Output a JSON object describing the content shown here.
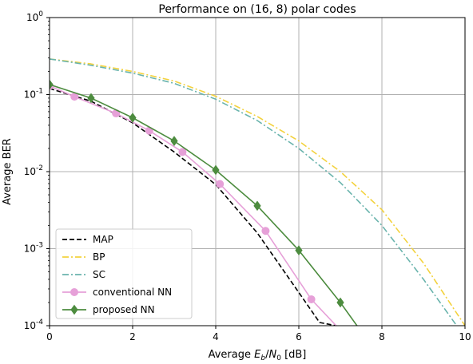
{
  "chart_data": {
    "type": "line",
    "title": "Performance on (16, 8) polar codes",
    "xlabel": {
      "prefix": "Average ",
      "sym1": "E",
      "sub1": "b",
      "slash": "/",
      "sym2": "N",
      "sub2": "0",
      "suffix": " [dB]"
    },
    "ylabel": "Average BER",
    "xlim": [
      0,
      10
    ],
    "ylim": [
      0.0001,
      1
    ],
    "yscale": "log",
    "grid": true,
    "legend_position": "lower-left",
    "x_ticks": [
      "0",
      "2",
      "4",
      "6",
      "8",
      "10"
    ],
    "x_tick_values": [
      0,
      2,
      4,
      6,
      8,
      10
    ],
    "y_ticks": [
      {
        "value": 1,
        "base": "10",
        "exp": "0"
      },
      {
        "value": 0.1,
        "base": "10",
        "exp": "-1"
      },
      {
        "value": 0.01,
        "base": "10",
        "exp": "-2"
      },
      {
        "value": 0.001,
        "base": "10",
        "exp": "-3"
      },
      {
        "value": 0.0001,
        "base": "10",
        "exp": "-4"
      }
    ],
    "series": [
      {
        "name": "MAP",
        "color": "#000000",
        "style": "dashed",
        "marker": "none",
        "x": [
          0,
          1,
          2,
          3,
          4,
          5,
          6,
          6.5,
          6.9
        ],
        "y": [
          0.12,
          0.082,
          0.043,
          0.018,
          0.0068,
          0.0016,
          0.00027,
          0.00011,
          0.0001
        ]
      },
      {
        "name": "BP",
        "color": "#f3d23e",
        "style": "dashdot",
        "marker": "none",
        "x": [
          0,
          1,
          2,
          3,
          4,
          5,
          6,
          7,
          8,
          9,
          10
        ],
        "y": [
          0.29,
          0.25,
          0.2,
          0.15,
          0.095,
          0.052,
          0.025,
          0.01,
          0.0032,
          0.00065,
          0.0001
        ]
      },
      {
        "name": "SC",
        "color": "#6ab4ad",
        "style": "dashdot",
        "marker": "none",
        "x": [
          0,
          1,
          2,
          3,
          4,
          5,
          6,
          7,
          8,
          9,
          9.8
        ],
        "y": [
          0.29,
          0.24,
          0.19,
          0.14,
          0.087,
          0.046,
          0.02,
          0.0072,
          0.002,
          0.0004,
          0.0001
        ]
      },
      {
        "name": "conventional NN",
        "color": "#e6a0d8",
        "style": "solid",
        "marker": "circle",
        "x": [
          0,
          0.6,
          1.6,
          2.4,
          3.2,
          4.1,
          5.2,
          6.3,
          6.9
        ],
        "y": [
          0.13,
          0.094,
          0.057,
          0.034,
          0.018,
          0.0069,
          0.0017,
          0.00022,
          0.0001
        ]
      },
      {
        "name": "proposed NN",
        "color": "#4d8c3f",
        "style": "solid",
        "marker": "diamond",
        "x": [
          0,
          1,
          2,
          3,
          4,
          5,
          6,
          7,
          7.4
        ],
        "y": [
          0.135,
          0.09,
          0.05,
          0.025,
          0.0105,
          0.0036,
          0.00095,
          0.0002,
          0.0001
        ]
      }
    ]
  }
}
